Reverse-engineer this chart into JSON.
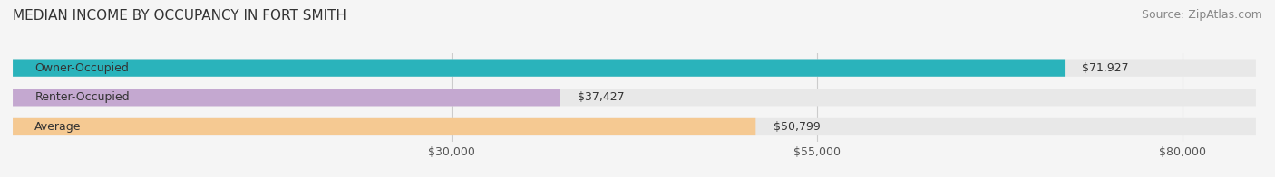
{
  "title": "MEDIAN INCOME BY OCCUPANCY IN FORT SMITH",
  "source": "Source: ZipAtlas.com",
  "categories": [
    "Owner-Occupied",
    "Renter-Occupied",
    "Average"
  ],
  "values": [
    71927,
    37427,
    50799
  ],
  "bar_colors": [
    "#2ab3bb",
    "#c4a8d0",
    "#f5c992"
  ],
  "value_labels": [
    "$71,927",
    "$37,427",
    "$50,799"
  ],
  "x_ticks": [
    30000,
    55000,
    80000
  ],
  "x_tick_labels": [
    "$30,000",
    "$55,000",
    "$80,000"
  ],
  "xlim": [
    0,
    85000
  ],
  "background_color": "#f5f5f5",
  "bar_bg_color": "#e8e8e8",
  "title_fontsize": 11,
  "source_fontsize": 9,
  "label_fontsize": 9,
  "value_fontsize": 9,
  "tick_fontsize": 9
}
